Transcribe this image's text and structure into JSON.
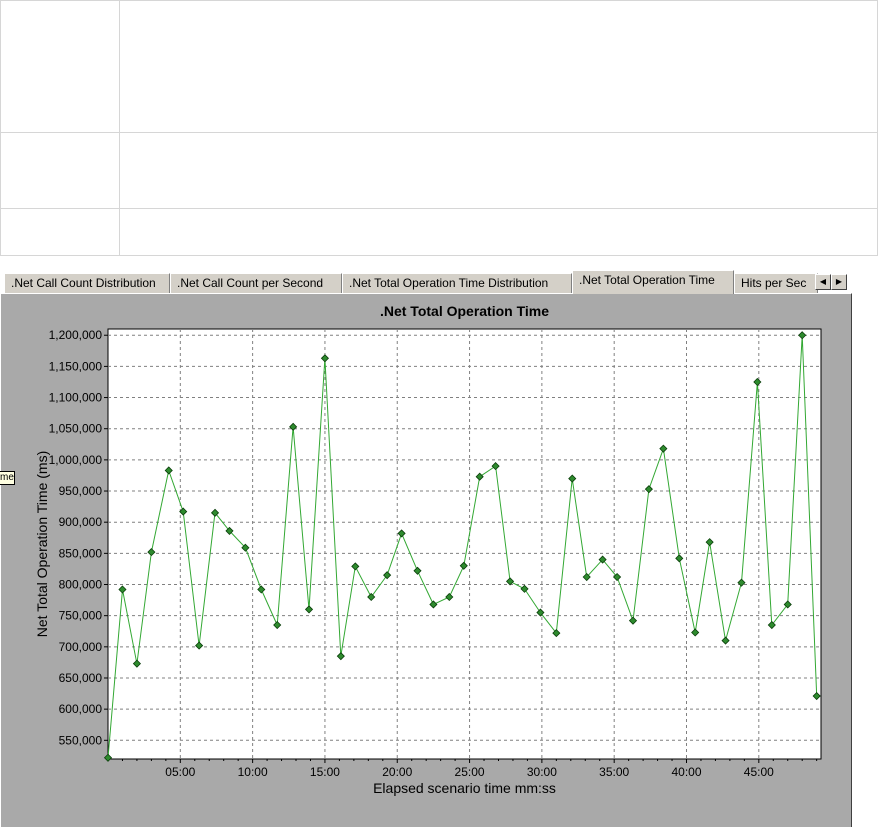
{
  "tabs": [
    {
      "label": ".Net Call Count Distribution",
      "active": false
    },
    {
      "label": ".Net Call Count per Second",
      "active": false
    },
    {
      "label": ".Net Total Operation Time Distribution",
      "active": false
    },
    {
      "label": ".Net Total Operation Time",
      "active": true
    },
    {
      "label": "Hits per Sec",
      "active": false
    }
  ],
  "tab_scroll": {
    "left_icon": "triangle-left-icon",
    "right_icon": "triangle-right-icon"
  },
  "tooltip_fragment": "me",
  "colors": {
    "line": "#33a833",
    "marker": "#2e8b2e",
    "panel": "#a9a9a9",
    "plot_bg": "#ffffff",
    "grid": "#808080"
  },
  "chart_data": {
    "type": "line",
    "title": ".Net Total Operation Time",
    "xlabel": "Elapsed scenario time mm:ss",
    "ylabel": "Net Total Operation Time (ms)",
    "x_unit": "minutes",
    "xlim": [
      0,
      49.3
    ],
    "ylim": [
      520000,
      1210000
    ],
    "x_ticks": [
      {
        "value": 5,
        "label": "05:00"
      },
      {
        "value": 10,
        "label": "10:00"
      },
      {
        "value": 15,
        "label": "15:00"
      },
      {
        "value": 20,
        "label": "20:00"
      },
      {
        "value": 25,
        "label": "25:00"
      },
      {
        "value": 30,
        "label": "30:00"
      },
      {
        "value": 35,
        "label": "35:00"
      },
      {
        "value": 40,
        "label": "40:00"
      },
      {
        "value": 45,
        "label": "45:00"
      }
    ],
    "y_ticks": [
      {
        "value": 550000,
        "label": "550,000"
      },
      {
        "value": 600000,
        "label": "600,000"
      },
      {
        "value": 650000,
        "label": "650,000"
      },
      {
        "value": 700000,
        "label": "700,000"
      },
      {
        "value": 750000,
        "label": "750,000"
      },
      {
        "value": 800000,
        "label": "800,000"
      },
      {
        "value": 850000,
        "label": "850,000"
      },
      {
        "value": 900000,
        "label": "900,000"
      },
      {
        "value": 950000,
        "label": "950,000"
      },
      {
        "value": 1000000,
        "label": "1,000,000"
      },
      {
        "value": 1050000,
        "label": "1,050,000"
      },
      {
        "value": 1100000,
        "label": "1,100,000"
      },
      {
        "value": 1150000,
        "label": "1,150,000"
      },
      {
        "value": 1200000,
        "label": "1,200,000"
      }
    ],
    "grid": true,
    "series": [
      {
        "x": [
          0.0,
          1.0,
          2.0,
          3.0,
          4.2,
          5.2,
          6.3,
          7.4,
          8.4,
          9.5,
          10.6,
          11.7,
          12.8,
          13.9,
          15.0,
          16.1,
          17.1,
          18.2,
          19.3,
          20.3,
          21.4,
          22.5,
          23.6,
          24.6,
          25.7,
          26.8,
          27.8,
          28.8,
          29.9,
          31.0,
          32.1,
          33.1,
          34.2,
          35.2,
          36.3,
          37.4,
          38.4,
          39.5,
          40.6,
          41.6,
          42.7,
          43.8,
          44.9,
          45.9,
          47.0,
          48.0,
          49.0
        ],
        "y": [
          522000,
          792000,
          673000,
          852000,
          983000,
          917000,
          702000,
          915000,
          886000,
          859000,
          792000,
          735000,
          1053000,
          760000,
          1163000,
          685000,
          829000,
          780000,
          815000,
          882000,
          822000,
          768000,
          780000,
          830000,
          973000,
          990000,
          805000,
          793000,
          755000,
          722000,
          970000,
          812000,
          840000,
          812000,
          742000,
          953000,
          1018000,
          842000,
          723000,
          868000,
          710000,
          803000,
          1125000,
          735000,
          768000,
          1200000,
          621000
        ]
      }
    ]
  }
}
